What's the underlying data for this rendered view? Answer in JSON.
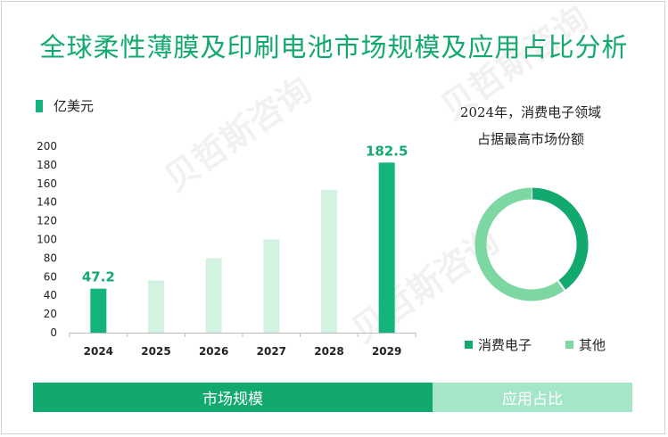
{
  "title": "全球柔性薄膜及印刷电池市场规模及应用占比分析",
  "unit_label": "亿美元",
  "right_title_line1": "2024年，消费电子领域",
  "right_title_line2": "占据最高市场份额",
  "tabs": {
    "market_size": "市场规模",
    "share": "应用占比"
  },
  "watermark": "贝哲斯咨询",
  "colors": {
    "accent": "#12a96e",
    "bar_dark": "#14b47a",
    "bar_light": "#d3f2e2",
    "pie_light": "#7dd7a3"
  },
  "chart_data": [
    {
      "type": "bar",
      "title": "",
      "ylabel": "亿美元",
      "ylim": [
        0,
        200
      ],
      "yticks": [
        0,
        20,
        40,
        60,
        80,
        100,
        120,
        140,
        160,
        180,
        200
      ],
      "categories": [
        "2024",
        "2025",
        "2026",
        "2027",
        "2028",
        "2029"
      ],
      "values": [
        47.2,
        56,
        80,
        100,
        153,
        182.5
      ],
      "highlighted": [
        true,
        false,
        false,
        false,
        false,
        true
      ],
      "data_labels": [
        "47.2",
        "",
        "",
        "",
        "",
        "182.5"
      ]
    },
    {
      "type": "pie",
      "title": "2024年，消费电子领域占据最高市场份额",
      "labels": [
        "消费电子",
        "其他"
      ],
      "values": [
        40,
        60
      ],
      "colors": [
        "#12a96e",
        "#7dd7a3"
      ]
    }
  ]
}
